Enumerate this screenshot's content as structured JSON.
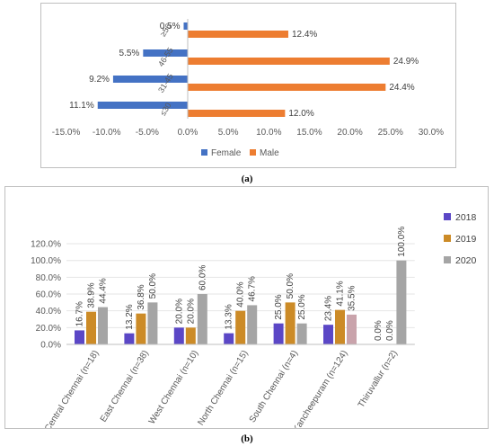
{
  "chart_data": [
    {
      "type": "bar",
      "orientation": "horizontal",
      "categories": [
        "≥56",
        "46-55",
        "31-45",
        "≤30"
      ],
      "series": [
        {
          "name": "Female",
          "values": [
            -0.5,
            -5.5,
            -9.2,
            -11.1
          ],
          "labels": [
            "0.5%",
            "5.5%",
            "9.2%",
            "11.1%"
          ],
          "color": "#4472c4"
        },
        {
          "name": "Male",
          "values": [
            12.4,
            24.9,
            24.4,
            12.0
          ],
          "labels": [
            "12.4%",
            "24.9%",
            "24.4%",
            "12.0%"
          ],
          "color": "#ed7d31"
        }
      ],
      "xticks": [
        "-15.0%",
        "-10.0%",
        "-5.0%",
        "0.0%",
        "5.0%",
        "10.0%",
        "15.0%",
        "20.0%",
        "25.0%",
        "30.0%"
      ],
      "xlim": [
        -15,
        30
      ],
      "legend": "bottom",
      "caption": "(a)"
    },
    {
      "type": "bar",
      "categories": [
        "Central Chennai (n=18)",
        "East Chennai (n=38)",
        "West Chennai (n=10)",
        "North Chennai (n=15)",
        "South Chennai (n=4)",
        "Kancheepuram (n=124)",
        "Thiruvallur (n=2)"
      ],
      "series": [
        {
          "name": "2018",
          "values": [
            16.7,
            13.2,
            20.0,
            13.3,
            25.0,
            23.4,
            0.0
          ],
          "labels": [
            "16.7%",
            "13.2%",
            "20.0%",
            "13.3%",
            "25.0%",
            "23.4%",
            "0.0%"
          ],
          "color": "#5b47c6"
        },
        {
          "name": "2019",
          "values": [
            38.9,
            36.8,
            20.0,
            40.0,
            50.0,
            41.1,
            0.0
          ],
          "labels": [
            "38.9%",
            "36.8%",
            "20.0%",
            "40.0%",
            "50.0%",
            "41.1%",
            "0.0%"
          ],
          "color": "#cc8b27"
        },
        {
          "name": "2020",
          "values": [
            44.4,
            50.0,
            60.0,
            46.7,
            25.0,
            35.5,
            100.0
          ],
          "labels": [
            "44.4%",
            "50.0%",
            "60.0%",
            "46.7%",
            "25.0%",
            "35.5%",
            "100.0%"
          ],
          "color": "#a5a5a5"
        }
      ],
      "yticks": [
        "0.0%",
        "20.0%",
        "40.0%",
        "60.0%",
        "80.0%",
        "100.0%",
        "120.0%"
      ],
      "ylim": [
        0,
        120
      ],
      "legend": "right",
      "caption": "(b)"
    }
  ],
  "colors": {
    "kancheepuram_2020": "#c9a3ab"
  }
}
